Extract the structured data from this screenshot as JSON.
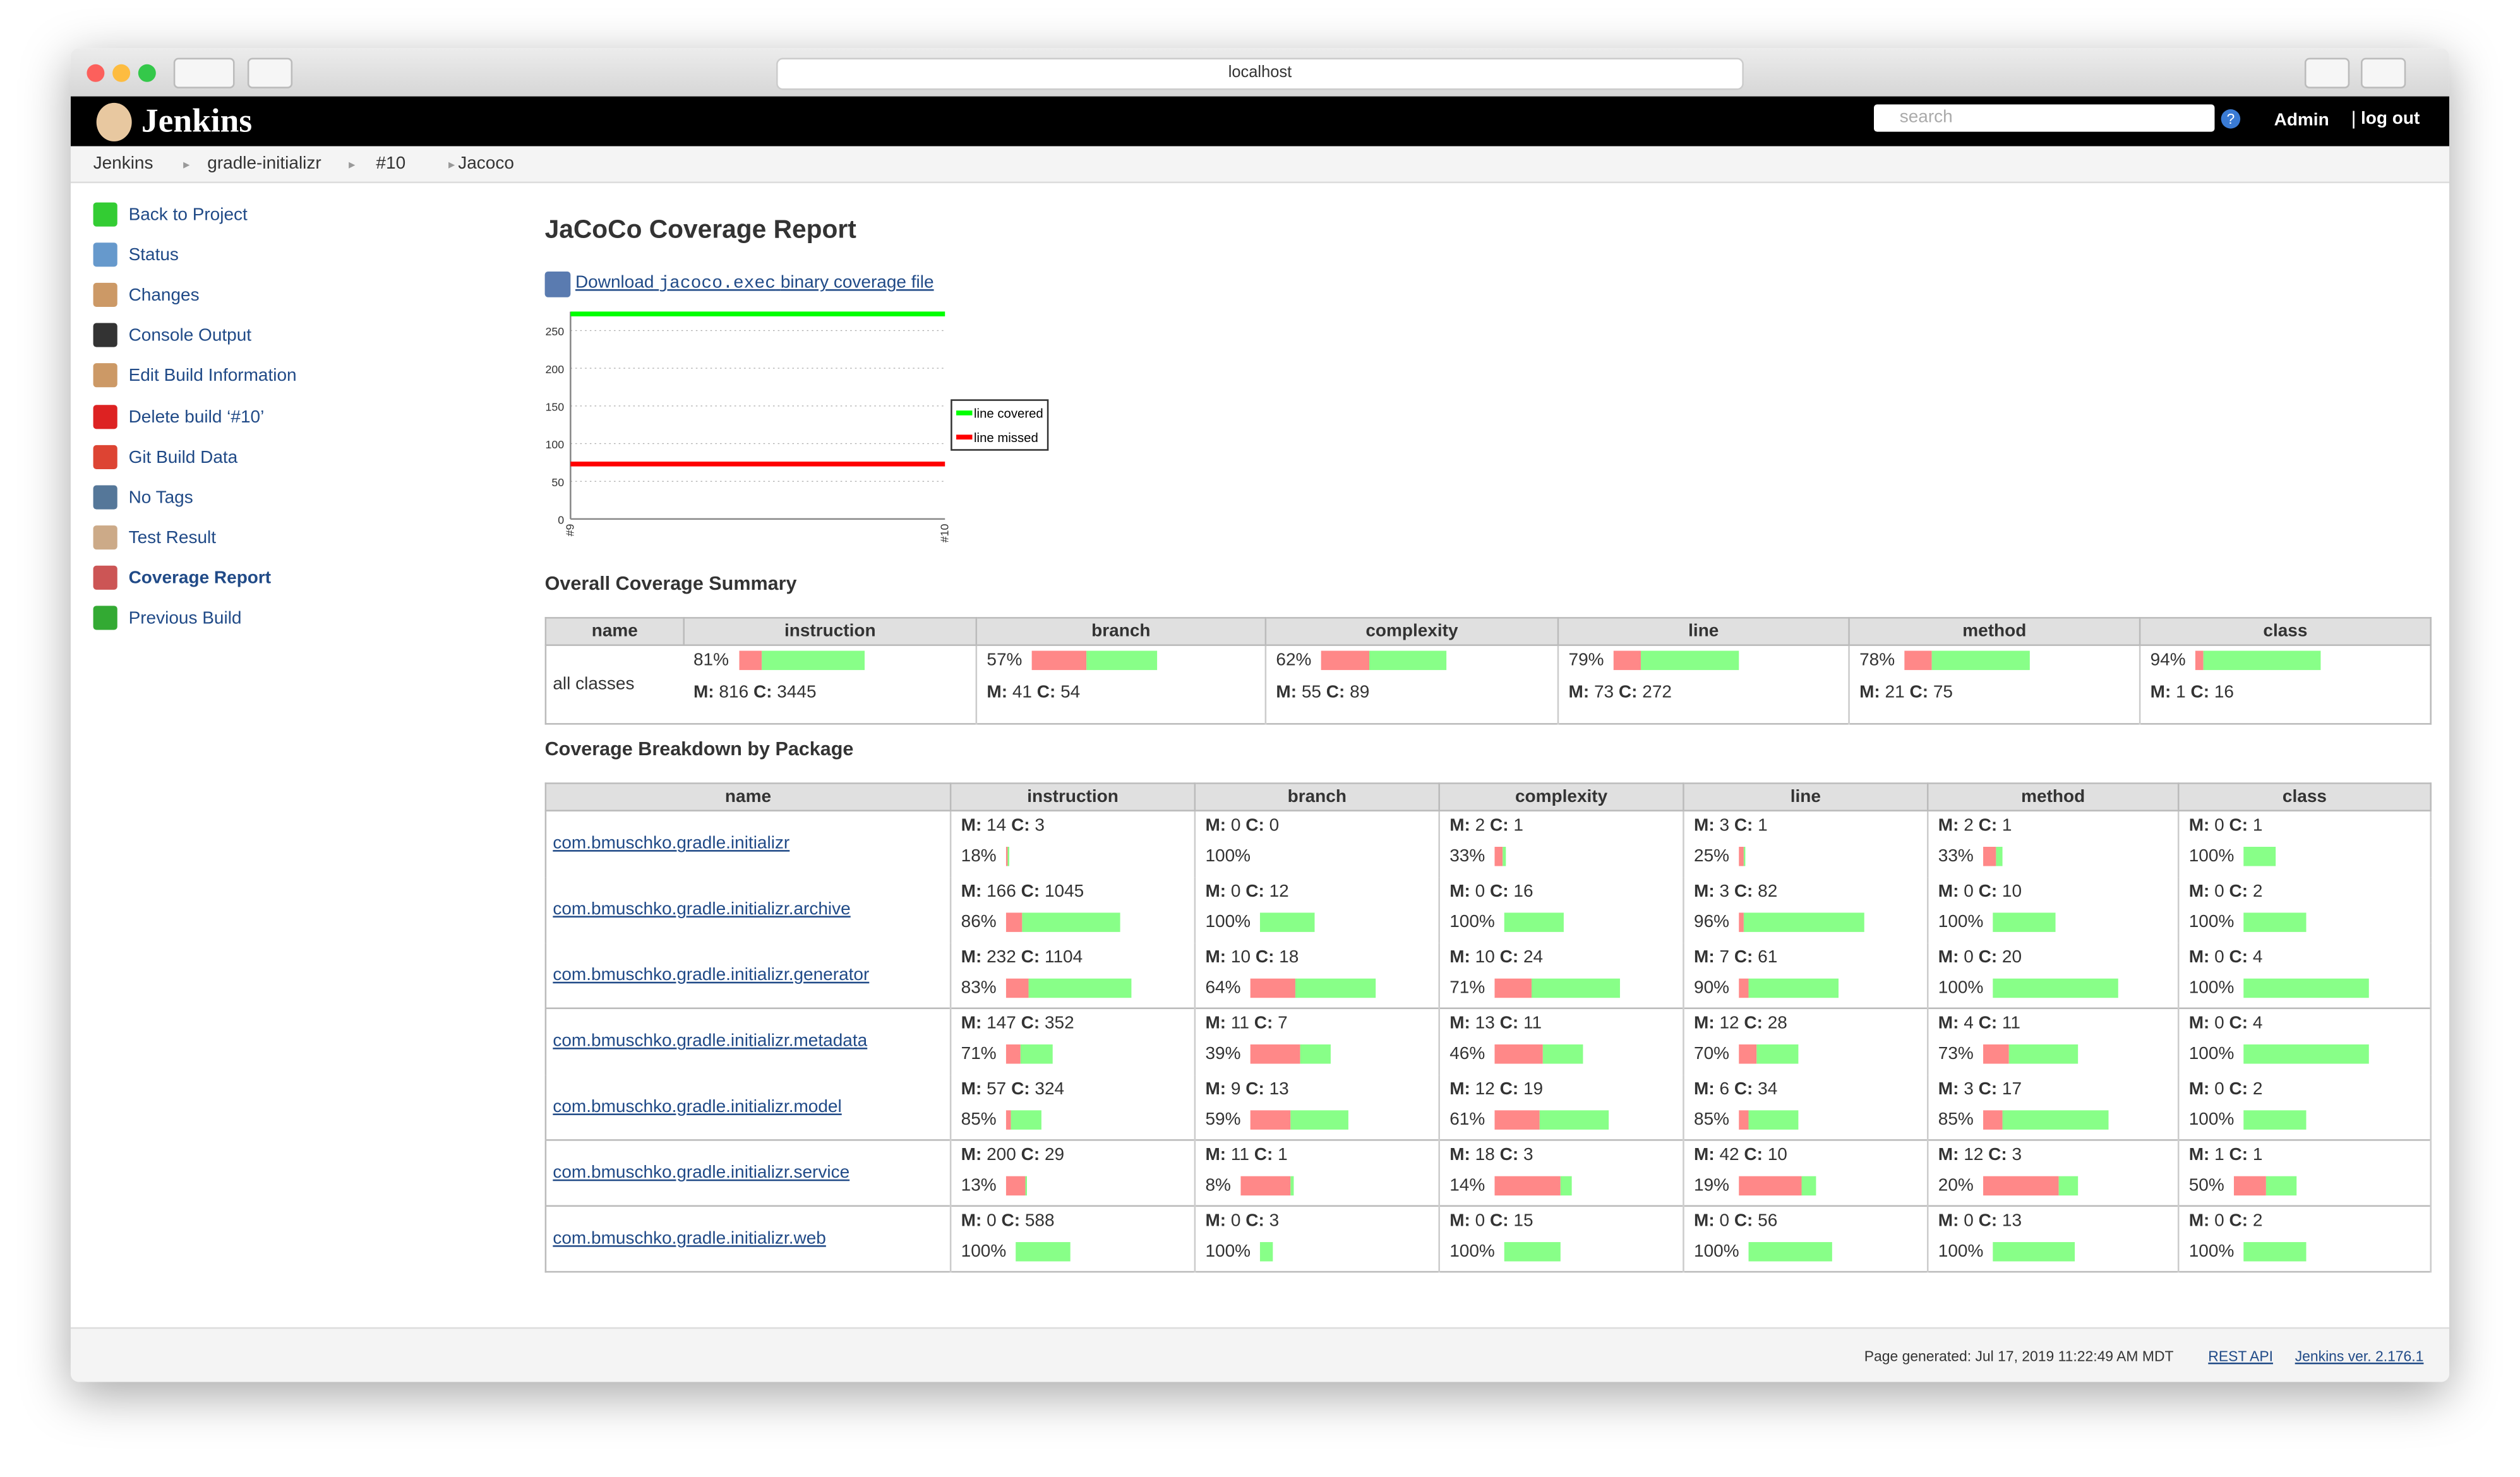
{
  "browser": {
    "url": "localhost"
  },
  "header": {
    "logo": "Jenkins",
    "search_placeholder": "search",
    "help": "?",
    "user": "Admin",
    "logout": "log out"
  },
  "breadcrumbs": [
    "Jenkins",
    "gradle-initializr",
    "#10",
    "Jacoco"
  ],
  "sidebar": [
    "Back to Project",
    "Status",
    "Changes",
    "Console Output",
    "Edit Build Information",
    "Delete build ‘#10’",
    "Git Build Data",
    "No Tags",
    "Test Result",
    "Coverage Report",
    "Previous Build"
  ],
  "report": {
    "title": "JaCoCo Coverage Report",
    "download_before": "Download",
    "download_code": "jacoco.exec",
    "download_after": "binary coverage file"
  },
  "chart_data": {
    "type": "line",
    "x": [
      "#9",
      "#10"
    ],
    "series": [
      {
        "name": "line covered",
        "color": "#00ff00",
        "values": [
          272,
          272
        ]
      },
      {
        "name": "line missed",
        "color": "#ff0000",
        "values": [
          73,
          73
        ]
      }
    ],
    "ylim": [
      0,
      275
    ],
    "yticks": [
      0,
      50,
      100,
      150,
      200,
      250
    ],
    "grid": true,
    "legend": "right"
  },
  "labels": {
    "missed": "M:",
    "covered": "C:"
  },
  "summary": {
    "title": "Overall Coverage Summary",
    "columns": [
      "name",
      "instruction",
      "branch",
      "complexity",
      "line",
      "method",
      "class"
    ],
    "row": {
      "name": "all classes",
      "cells": [
        {
          "pct": "81%",
          "m": 816,
          "c": 3445
        },
        {
          "pct": "57%",
          "m": 41,
          "c": 54
        },
        {
          "pct": "62%",
          "m": 55,
          "c": 89
        },
        {
          "pct": "79%",
          "m": 73,
          "c": 272
        },
        {
          "pct": "78%",
          "m": 21,
          "c": 75
        },
        {
          "pct": "94%",
          "m": 1,
          "c": 16
        }
      ]
    }
  },
  "breakdown": {
    "title": "Coverage Breakdown by Package",
    "columns": [
      "name",
      "instruction",
      "branch",
      "complexity",
      "line",
      "method",
      "class"
    ],
    "rows": [
      {
        "name": "com.bmuschko.gradle.initializr",
        "cells": [
          {
            "pct": "18%",
            "m": 14,
            "c": 3
          },
          {
            "pct": "100%",
            "m": 0,
            "c": 0
          },
          {
            "pct": "33%",
            "m": 2,
            "c": 1
          },
          {
            "pct": "25%",
            "m": 3,
            "c": 1
          },
          {
            "pct": "33%",
            "m": 2,
            "c": 1
          },
          {
            "pct": "100%",
            "m": 0,
            "c": 1
          }
        ]
      },
      {
        "name": "com.bmuschko.gradle.initializr.archive",
        "cells": [
          {
            "pct": "86%",
            "m": 166,
            "c": 1045
          },
          {
            "pct": "100%",
            "m": 0,
            "c": 12
          },
          {
            "pct": "100%",
            "m": 0,
            "c": 16
          },
          {
            "pct": "96%",
            "m": 3,
            "c": 82
          },
          {
            "pct": "100%",
            "m": 0,
            "c": 10
          },
          {
            "pct": "100%",
            "m": 0,
            "c": 2
          }
        ]
      },
      {
        "name": "com.bmuschko.gradle.initializr.generator",
        "cells": [
          {
            "pct": "83%",
            "m": 232,
            "c": 1104
          },
          {
            "pct": "64%",
            "m": 10,
            "c": 18
          },
          {
            "pct": "71%",
            "m": 10,
            "c": 24
          },
          {
            "pct": "90%",
            "m": 7,
            "c": 61
          },
          {
            "pct": "100%",
            "m": 0,
            "c": 20
          },
          {
            "pct": "100%",
            "m": 0,
            "c": 4
          }
        ]
      },
      {
        "name": "com.bmuschko.gradle.initializr.metadata",
        "cells": [
          {
            "pct": "71%",
            "m": 147,
            "c": 352
          },
          {
            "pct": "39%",
            "m": 11,
            "c": 7
          },
          {
            "pct": "46%",
            "m": 13,
            "c": 11
          },
          {
            "pct": "70%",
            "m": 12,
            "c": 28
          },
          {
            "pct": "73%",
            "m": 4,
            "c": 11
          },
          {
            "pct": "100%",
            "m": 0,
            "c": 4
          }
        ]
      },
      {
        "name": "com.bmuschko.gradle.initializr.model",
        "cells": [
          {
            "pct": "85%",
            "m": 57,
            "c": 324
          },
          {
            "pct": "59%",
            "m": 9,
            "c": 13
          },
          {
            "pct": "61%",
            "m": 12,
            "c": 19
          },
          {
            "pct": "85%",
            "m": 6,
            "c": 34
          },
          {
            "pct": "85%",
            "m": 3,
            "c": 17
          },
          {
            "pct": "100%",
            "m": 0,
            "c": 2
          }
        ]
      },
      {
        "name": "com.bmuschko.gradle.initializr.service",
        "cells": [
          {
            "pct": "13%",
            "m": 200,
            "c": 29
          },
          {
            "pct": "8%",
            "m": 11,
            "c": 1
          },
          {
            "pct": "14%",
            "m": 18,
            "c": 3
          },
          {
            "pct": "19%",
            "m": 42,
            "c": 10
          },
          {
            "pct": "20%",
            "m": 12,
            "c": 3
          },
          {
            "pct": "50%",
            "m": 1,
            "c": 1
          }
        ]
      },
      {
        "name": "com.bmuschko.gradle.initializr.web",
        "cells": [
          {
            "pct": "100%",
            "m": 0,
            "c": 588
          },
          {
            "pct": "100%",
            "m": 0,
            "c": 3
          },
          {
            "pct": "100%",
            "m": 0,
            "c": 15
          },
          {
            "pct": "100%",
            "m": 0,
            "c": 56
          },
          {
            "pct": "100%",
            "m": 0,
            "c": 13
          },
          {
            "pct": "100%",
            "m": 0,
            "c": 2
          }
        ]
      }
    ]
  },
  "footer": {
    "generated": "Page generated: Jul 17, 2019 11:22:49 AM MDT",
    "rest_api": "REST API",
    "version": "Jenkins ver. 2.176.1"
  }
}
